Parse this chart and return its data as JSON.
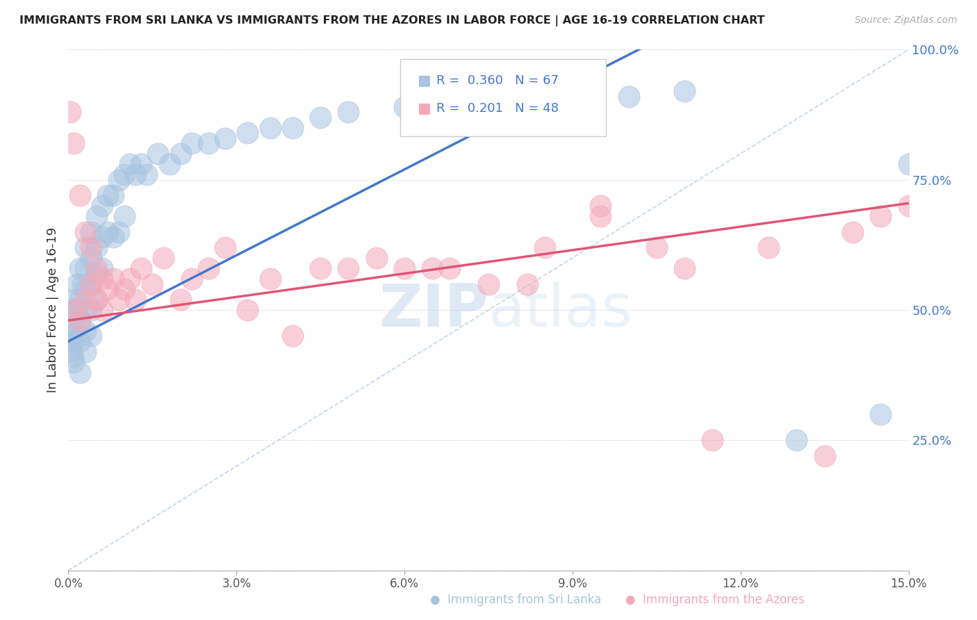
{
  "title": "IMMIGRANTS FROM SRI LANKA VS IMMIGRANTS FROM THE AZORES IN LABOR FORCE | AGE 16-19 CORRELATION CHART",
  "source": "Source: ZipAtlas.com",
  "ylabel": "In Labor Force | Age 16-19",
  "xlim": [
    0,
    0.15
  ],
  "ylim": [
    0,
    1.0
  ],
  "yticks": [
    0.0,
    0.25,
    0.5,
    0.75,
    1.0
  ],
  "ytick_labels": [
    "",
    "25.0%",
    "50.0%",
    "75.0%",
    "100.0%"
  ],
  "xtick_positions": [
    0.0,
    0.03,
    0.06,
    0.09,
    0.12,
    0.15
  ],
  "xtick_labels": [
    "0.0%",
    "3.0%",
    "6.0%",
    "9.0%",
    "12.0%",
    "15.0%"
  ],
  "sri_lanka_color": "#a8c4e0",
  "azores_color": "#f4a9b8",
  "sri_lanka_line_color": "#4477cc",
  "azores_line_color": "#e05575",
  "diagonal_color": "#a8c4e0",
  "background_color": "#ffffff",
  "grid_color": "#cccccc",
  "watermark_zip": "ZIP",
  "watermark_atlas": "atlas",
  "legend_R1": "R =  0.360",
  "legend_N1": "N = 67",
  "legend_R2": "R =  0.201",
  "legend_N2": "N = 48",
  "sri_lanka_color_legend": "#a8c4e0",
  "azores_color_legend": "#f4a9b8",
  "sri_lanka_x": [
    0.0002,
    0.0003,
    0.0005,
    0.0006,
    0.0008,
    0.001,
    0.001,
    0.001,
    0.001,
    0.001,
    0.0015,
    0.0015,
    0.002,
    0.002,
    0.002,
    0.002,
    0.002,
    0.0025,
    0.003,
    0.003,
    0.003,
    0.003,
    0.003,
    0.003,
    0.004,
    0.004,
    0.004,
    0.004,
    0.004,
    0.005,
    0.005,
    0.005,
    0.005,
    0.006,
    0.006,
    0.006,
    0.007,
    0.007,
    0.008,
    0.008,
    0.009,
    0.009,
    0.01,
    0.01,
    0.011,
    0.012,
    0.013,
    0.014,
    0.016,
    0.018,
    0.02,
    0.022,
    0.025,
    0.028,
    0.032,
    0.036,
    0.04,
    0.045,
    0.05,
    0.06,
    0.07,
    0.085,
    0.1,
    0.11,
    0.13,
    0.145,
    0.15
  ],
  "sri_lanka_y": [
    0.47,
    0.44,
    0.42,
    0.45,
    0.41,
    0.5,
    0.52,
    0.48,
    0.44,
    0.4,
    0.55,
    0.5,
    0.58,
    0.52,
    0.48,
    0.44,
    0.38,
    0.55,
    0.62,
    0.58,
    0.54,
    0.5,
    0.46,
    0.42,
    0.65,
    0.6,
    0.55,
    0.5,
    0.45,
    0.68,
    0.62,
    0.57,
    0.52,
    0.7,
    0.64,
    0.58,
    0.72,
    0.65,
    0.72,
    0.64,
    0.75,
    0.65,
    0.76,
    0.68,
    0.78,
    0.76,
    0.78,
    0.76,
    0.8,
    0.78,
    0.8,
    0.82,
    0.82,
    0.83,
    0.84,
    0.85,
    0.85,
    0.87,
    0.88,
    0.89,
    0.9,
    0.91,
    0.91,
    0.92,
    0.25,
    0.3,
    0.78
  ],
  "azores_x": [
    0.0003,
    0.001,
    0.001,
    0.002,
    0.002,
    0.003,
    0.003,
    0.004,
    0.004,
    0.005,
    0.005,
    0.006,
    0.006,
    0.007,
    0.008,
    0.009,
    0.01,
    0.011,
    0.012,
    0.013,
    0.015,
    0.017,
    0.02,
    0.022,
    0.025,
    0.028,
    0.032,
    0.036,
    0.04,
    0.045,
    0.05,
    0.055,
    0.06,
    0.065,
    0.075,
    0.085,
    0.095,
    0.11,
    0.125,
    0.14,
    0.15,
    0.145,
    0.135,
    0.115,
    0.105,
    0.095,
    0.082,
    0.068
  ],
  "azores_y": [
    0.88,
    0.82,
    0.5,
    0.72,
    0.48,
    0.65,
    0.52,
    0.62,
    0.55,
    0.58,
    0.52,
    0.56,
    0.5,
    0.54,
    0.56,
    0.52,
    0.54,
    0.56,
    0.52,
    0.58,
    0.55,
    0.6,
    0.52,
    0.56,
    0.58,
    0.62,
    0.5,
    0.56,
    0.45,
    0.58,
    0.58,
    0.6,
    0.58,
    0.58,
    0.55,
    0.62,
    0.7,
    0.58,
    0.62,
    0.65,
    0.7,
    0.68,
    0.22,
    0.25,
    0.62,
    0.68,
    0.55,
    0.58
  ]
}
